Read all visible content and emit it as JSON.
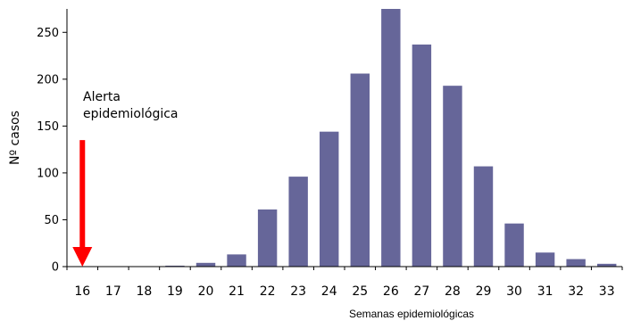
{
  "chart_data": {
    "type": "bar",
    "categories": [
      "16",
      "17",
      "18",
      "19",
      "20",
      "21",
      "22",
      "23",
      "24",
      "25",
      "26",
      "27",
      "28",
      "29",
      "30",
      "31",
      "32",
      "33"
    ],
    "values": [
      0,
      0,
      0,
      1,
      4,
      13,
      61,
      96,
      144,
      206,
      275,
      237,
      193,
      107,
      46,
      15,
      8,
      3
    ],
    "title": "",
    "xlabel": "Semanas epidemiológicas",
    "ylabel": "Nº casos",
    "ylim": [
      0,
      275
    ],
    "yticks": [
      0,
      50,
      100,
      150,
      200,
      250
    ],
    "grid": false,
    "bar_color": "#666699",
    "annotation": {
      "line1": "Alerta",
      "line2": "epidemiológica",
      "category": "16",
      "arrow_from_value": 135,
      "arrow_to_value": 0,
      "arrow_color": "#ff0000"
    }
  }
}
